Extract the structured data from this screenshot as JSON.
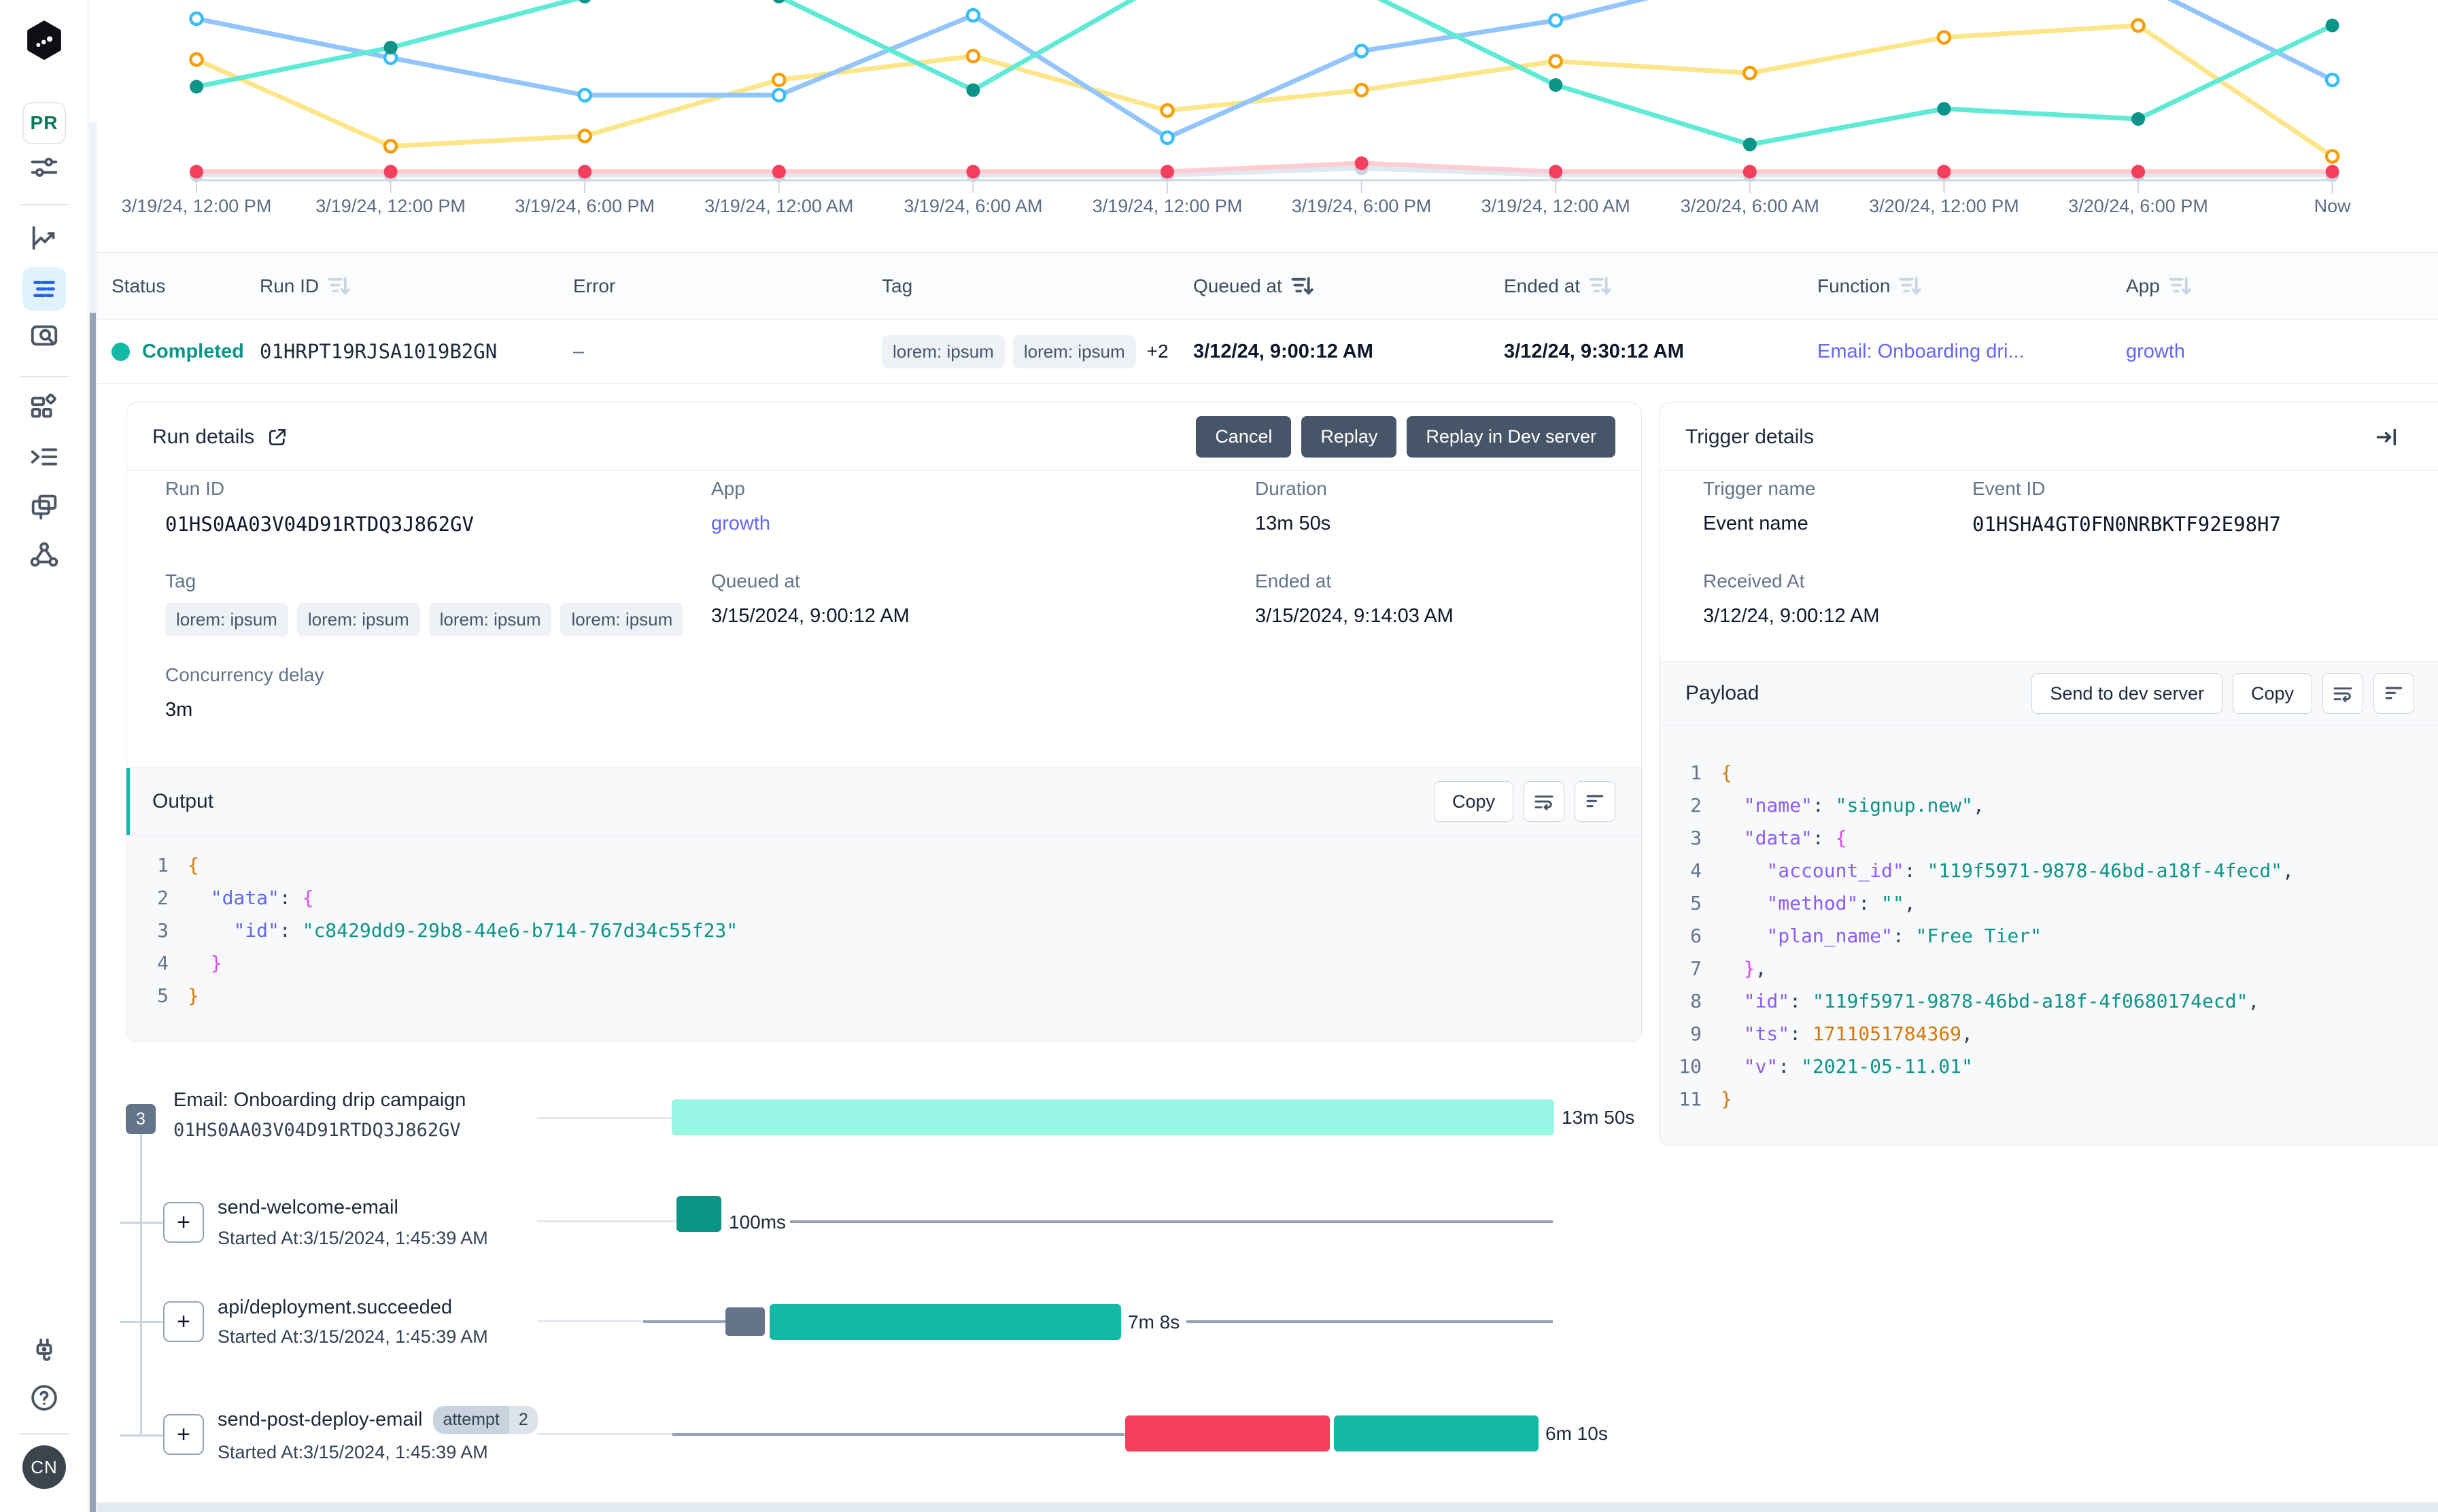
{
  "sidebar": {
    "env_badge": "PR",
    "avatar_initials": "CN",
    "nav": [
      {
        "label": "filters",
        "icon": "sliders-icon"
      },
      {
        "label": "metrics",
        "icon": "line-chart-icon"
      },
      {
        "label": "runs",
        "icon": "runs-list-icon",
        "active": true
      },
      {
        "label": "events",
        "icon": "search-doc-icon"
      },
      {
        "label": "apps",
        "icon": "apps-grid-icon"
      },
      {
        "label": "functions",
        "icon": "indent-list-icon"
      },
      {
        "label": "deploys",
        "icon": "windows-icon"
      },
      {
        "label": "integrations",
        "icon": "share-nodes-icon"
      },
      {
        "label": "dev-server",
        "icon": "plug-icon"
      },
      {
        "label": "help",
        "icon": "help-icon"
      }
    ]
  },
  "chart_data": {
    "type": "line",
    "x_labels": [
      "3/19/24, 12:00 PM",
      "3/19/24, 12:00 PM",
      "3/19/24, 6:00 PM",
      "3/19/24, 12:00 AM",
      "3/19/24, 6:00 AM",
      "3/19/24, 12:00 PM",
      "3/19/24, 6:00 PM",
      "3/19/24, 12:00 AM",
      "3/20/24, 6:00 AM",
      "3/20/24, 12:00 PM",
      "3/20/24, 6:00 PM",
      "Now"
    ],
    "ylim": [
      0,
      100
    ],
    "grid": false,
    "legend": "none",
    "note": "top of plot is clipped by viewport; values above 100 are cut off",
    "series": [
      {
        "name": "gray",
        "line_color": "#e2e8f0",
        "dot_color": "#cbd5e1",
        "dot_style": "filled",
        "values": [
          3,
          3,
          3,
          3,
          3,
          3,
          7,
          3,
          3,
          3,
          3,
          3
        ]
      },
      {
        "name": "red",
        "line_color": "#fecdd3",
        "dot_color": "#f43f5e",
        "dot_style": "filled",
        "values": [
          5,
          5,
          5,
          5,
          5,
          5,
          10,
          5,
          5,
          5,
          5,
          5
        ]
      },
      {
        "name": "yellow",
        "line_color": "#fde68a",
        "dot_color": "#f59e0b",
        "dot_style": "hollow",
        "values": [
          71,
          20,
          26,
          59,
          73,
          41,
          53,
          70,
          63,
          84,
          91,
          14
        ]
      },
      {
        "name": "blue",
        "line_color": "#93c5fd",
        "dot_color": "#38bdf8",
        "dot_style": "hollow",
        "values": [
          95,
          72,
          50,
          50,
          97,
          25,
          76,
          94,
          122,
          132,
          116,
          59
        ]
      },
      {
        "name": "teal",
        "line_color": "#5eead4",
        "dot_color": "#0d9488",
        "dot_style": "filled",
        "values": [
          55,
          78,
          108,
          108,
          53,
          118,
          112,
          56,
          21,
          42,
          36,
          91
        ]
      }
    ]
  },
  "runs_table": {
    "columns": [
      {
        "label": "Status",
        "sort": "none"
      },
      {
        "label": "Run ID",
        "sort": "inactive"
      },
      {
        "label": "Error",
        "sort": "none"
      },
      {
        "label": "Tag",
        "sort": "none"
      },
      {
        "label": "Queued at",
        "sort": "active"
      },
      {
        "label": "Ended at",
        "sort": "inactive"
      },
      {
        "label": "Function",
        "sort": "inactive"
      },
      {
        "label": "App",
        "sort": "inactive"
      }
    ],
    "row": {
      "status": "Completed",
      "run_id": "01HRPT19RJSA1019B2GN",
      "error": "–",
      "tags": [
        "lorem: ipsum",
        "lorem: ipsum"
      ],
      "tags_more": "+2",
      "queued_at": "3/12/24, 9:00:12 AM",
      "ended_at": "3/12/24, 9:30:12 AM",
      "function": "Email: Onboarding dri...",
      "app": "growth"
    }
  },
  "run_details": {
    "title": "Run details",
    "buttons": {
      "cancel": "Cancel",
      "replay": "Replay",
      "replay_dev": "Replay in Dev server"
    },
    "fields": {
      "run_id_label": "Run ID",
      "run_id": "01HS0AA03V04D91RTDQ3J862GV",
      "app_label": "App",
      "app": "growth",
      "duration_label": "Duration",
      "duration": "13m 50s",
      "tag_label": "Tag",
      "tags": [
        "lorem: ipsum",
        "lorem: ipsum",
        "lorem: ipsum",
        "lorem: ipsum"
      ],
      "queued_label": "Queued at",
      "queued": "3/15/2024, 9:00:12 AM",
      "ended_label": "Ended at",
      "ended": "3/15/2024, 9:14:03 AM",
      "concurrency_label": "Concurrency delay",
      "concurrency": "3m"
    },
    "output": {
      "title": "Output",
      "copy_label": "Copy",
      "lines": [
        {
          "n": "1",
          "tokens": [
            {
              "t": "{",
              "c": "a"
            }
          ]
        },
        {
          "n": "2",
          "tokens": [
            {
              "t": "  ",
              "c": "p"
            },
            {
              "t": "\"data\"",
              "c": "b"
            },
            {
              "t": ": ",
              "c": "p"
            },
            {
              "t": "{",
              "c": "m"
            }
          ]
        },
        {
          "n": "3",
          "tokens": [
            {
              "t": "    ",
              "c": "p"
            },
            {
              "t": "\"id\"",
              "c": "b"
            },
            {
              "t": ": ",
              "c": "p"
            },
            {
              "t": "\"c8429dd9-29b8-44e6-b714-767d34c55f23\"",
              "c": "g"
            }
          ]
        },
        {
          "n": "4",
          "tokens": [
            {
              "t": "  ",
              "c": "p"
            },
            {
              "t": "}",
              "c": "m"
            }
          ]
        },
        {
          "n": "5",
          "tokens": [
            {
              "t": "}",
              "c": "a"
            }
          ]
        }
      ]
    }
  },
  "trigger_details": {
    "title": "Trigger details",
    "fields": {
      "trigger_name_label": "Trigger name",
      "trigger_name": "Event name",
      "event_id_label": "Event ID",
      "event_id": "01HSHA4GT0FN0NRBKTF92E98H7",
      "received_label": "Received At",
      "received": "3/12/24, 9:00:12 AM"
    },
    "payload": {
      "title": "Payload",
      "send_label": "Send to dev server",
      "copy_label": "Copy",
      "lines": [
        {
          "n": "1",
          "tokens": [
            {
              "t": "{",
              "c": "a"
            }
          ]
        },
        {
          "n": "2",
          "tokens": [
            {
              "t": "  ",
              "c": "p"
            },
            {
              "t": "\"name\"",
              "c": "v"
            },
            {
              "t": ": ",
              "c": "p"
            },
            {
              "t": "\"signup.new\"",
              "c": "g"
            },
            {
              "t": ",",
              "c": "p"
            }
          ]
        },
        {
          "n": "3",
          "tokens": [
            {
              "t": "  ",
              "c": "p"
            },
            {
              "t": "\"data\"",
              "c": "v"
            },
            {
              "t": ": ",
              "c": "p"
            },
            {
              "t": "{",
              "c": "m"
            }
          ]
        },
        {
          "n": "4",
          "tokens": [
            {
              "t": "    ",
              "c": "p"
            },
            {
              "t": "\"account_id\"",
              "c": "v"
            },
            {
              "t": ": ",
              "c": "p"
            },
            {
              "t": "\"119f5971-9878-46bd-a18f-4fecd\"",
              "c": "g"
            },
            {
              "t": ",",
              "c": "p"
            }
          ]
        },
        {
          "n": "5",
          "tokens": [
            {
              "t": "    ",
              "c": "p"
            },
            {
              "t": "\"method\"",
              "c": "v"
            },
            {
              "t": ": ",
              "c": "p"
            },
            {
              "t": "\"\"",
              "c": "g"
            },
            {
              "t": ",",
              "c": "p"
            }
          ]
        },
        {
          "n": "6",
          "tokens": [
            {
              "t": "    ",
              "c": "p"
            },
            {
              "t": "\"plan_name\"",
              "c": "v"
            },
            {
              "t": ": ",
              "c": "p"
            },
            {
              "t": "\"Free Tier\"",
              "c": "g"
            }
          ]
        },
        {
          "n": "7",
          "tokens": [
            {
              "t": "  ",
              "c": "p"
            },
            {
              "t": "}",
              "c": "m"
            },
            {
              "t": ",",
              "c": "p"
            }
          ]
        },
        {
          "n": "8",
          "tokens": [
            {
              "t": "  ",
              "c": "p"
            },
            {
              "t": "\"id\"",
              "c": "v"
            },
            {
              "t": ": ",
              "c": "p"
            },
            {
              "t": "\"119f5971-9878-46bd-a18f-4f0680174ecd\"",
              "c": "g"
            },
            {
              "t": ",",
              "c": "p"
            }
          ]
        },
        {
          "n": "9",
          "tokens": [
            {
              "t": "  ",
              "c": "p"
            },
            {
              "t": "\"ts\"",
              "c": "v"
            },
            {
              "t": ": ",
              "c": "p"
            },
            {
              "t": "1711051784369",
              "c": "n"
            },
            {
              "t": ",",
              "c": "p"
            }
          ]
        },
        {
          "n": "10",
          "tokens": [
            {
              "t": "  ",
              "c": "p"
            },
            {
              "t": "\"v\"",
              "c": "v"
            },
            {
              "t": ": ",
              "c": "p"
            },
            {
              "t": "\"2021-05-11.01\"",
              "c": "g"
            }
          ]
        },
        {
          "n": "11",
          "tokens": [
            {
              "t": "}",
              "c": "a"
            }
          ]
        }
      ]
    }
  },
  "timeline": {
    "rows": [
      {
        "badge": "3",
        "title": "Email: Onboarding drip campaign",
        "subtitle": "01HS0AA03V04D91RTDQ3J862GV",
        "duration": "13m 50s"
      },
      {
        "title": "send-welcome-email",
        "subtitle": "Started At:3/15/2024, 1:45:39 AM",
        "duration": "100ms"
      },
      {
        "title": "api/deployment.succeeded",
        "subtitle": "Started At:3/15/2024, 1:45:39 AM",
        "duration": "7m 8s"
      },
      {
        "title": "send-post-deploy-email",
        "attempt_label": "attempt",
        "attempt_count": "2",
        "subtitle": "Started At:3/15/2024, 1:45:39 AM",
        "duration": "6m 10s"
      }
    ],
    "expand_glyph": "+"
  }
}
